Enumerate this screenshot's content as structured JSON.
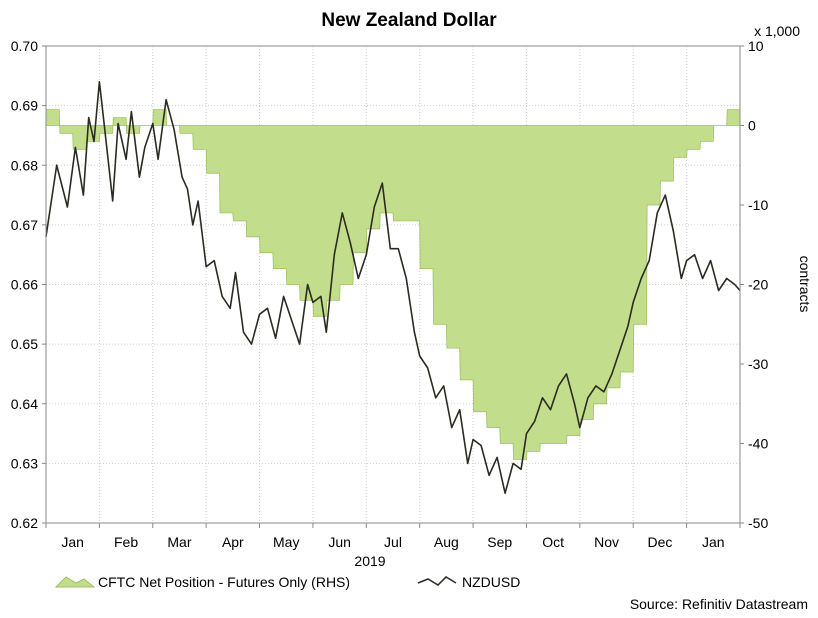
{
  "chart_data": {
    "type": "line",
    "title": "New Zealand Dollar",
    "xlabel": "2019",
    "ylabel_right": "contracts",
    "right_multiplier_label": "x 1,000",
    "source": "Source: Refinitiv Datastream",
    "x_ticks": [
      "Jan",
      "Feb",
      "Mar",
      "Apr",
      "May",
      "Jun",
      "Jul",
      "Aug",
      "Sep",
      "Oct",
      "Nov",
      "Dec",
      "Jan"
    ],
    "x_domain": [
      0,
      13
    ],
    "ylim_left": [
      0.62,
      0.7
    ],
    "yticks_left": [
      "0.62",
      "0.63",
      "0.64",
      "0.65",
      "0.66",
      "0.67",
      "0.68",
      "0.69",
      "0.70"
    ],
    "ylim_right": [
      -50,
      10
    ],
    "yticks_right": [
      "-50",
      "-40",
      "-30",
      "-20",
      "-10",
      "0",
      "10"
    ],
    "grid": true,
    "legend_position": "bottom-left",
    "colors": {
      "area_fill": "#c2de8c",
      "area_stroke": "#9fc25f",
      "line": "#2b2b22",
      "grid": "#cfcfcf",
      "frame": "#888888"
    },
    "series": [
      {
        "name": "CFTC Net Position - Futures Only (RHS)",
        "type": "area",
        "axis": "right",
        "x": [
          0.0,
          0.25,
          0.26,
          0.5,
          0.51,
          0.75,
          0.76,
          1.0,
          1.01,
          1.25,
          1.26,
          1.5,
          1.51,
          1.75,
          1.76,
          2.0,
          2.01,
          2.25,
          2.26,
          2.5,
          2.51,
          2.75,
          2.76,
          3.0,
          3.01,
          3.25,
          3.26,
          3.5,
          3.51,
          3.75,
          3.76,
          4.0,
          4.01,
          4.25,
          4.26,
          4.5,
          4.51,
          4.75,
          4.76,
          5.0,
          5.01,
          5.25,
          5.26,
          5.5,
          5.51,
          5.75,
          5.76,
          6.0,
          6.01,
          6.25,
          6.26,
          6.5,
          6.51,
          6.75,
          6.76,
          7.0,
          7.01,
          7.25,
          7.26,
          7.5,
          7.51,
          7.75,
          7.76,
          8.0,
          8.01,
          8.25,
          8.26,
          8.5,
          8.51,
          8.75,
          8.76,
          9.0,
          9.01,
          9.25,
          9.26,
          9.5,
          9.51,
          9.75,
          9.76,
          10.0,
          10.01,
          10.25,
          10.26,
          10.5,
          10.51,
          10.75,
          10.76,
          11.0,
          11.01,
          11.25,
          11.26,
          11.5,
          11.51,
          11.75,
          11.76,
          12.0,
          12.01,
          12.25,
          12.26,
          12.5,
          12.51,
          12.75,
          12.76,
          13.0
        ],
        "values": [
          2,
          2,
          -1,
          -1,
          -3,
          -3,
          -2,
          -2,
          -1,
          -1,
          1,
          1,
          -1,
          -1,
          0,
          0,
          2,
          2,
          0,
          0,
          -1,
          -1,
          -3,
          -3,
          -6,
          -6,
          -11,
          -11,
          -12,
          -12,
          -14,
          -14,
          -16,
          -16,
          -18,
          -18,
          -20,
          -20,
          -22,
          -22,
          -24,
          -24,
          -22,
          -22,
          -20,
          -20,
          -16,
          -16,
          -13,
          -13,
          -11,
          -11,
          -12,
          -12,
          -12,
          -12,
          -18,
          -18,
          -25,
          -25,
          -28,
          -28,
          -32,
          -32,
          -36,
          -36,
          -38,
          -38,
          -40,
          -40,
          -42,
          -42,
          -41,
          -41,
          -40,
          -40,
          -40,
          -40,
          -39,
          -39,
          -37,
          -37,
          -35,
          -35,
          -33,
          -33,
          -31,
          -31,
          -25,
          -25,
          -10,
          -10,
          -7,
          -7,
          -4,
          -4,
          -3,
          -3,
          -2,
          -2,
          0,
          0,
          2,
          2
        ]
      },
      {
        "name": "NZDUSD",
        "type": "line",
        "axis": "left",
        "x": [
          0.0,
          0.2,
          0.4,
          0.55,
          0.7,
          0.8,
          0.9,
          1.0,
          1.05,
          1.15,
          1.25,
          1.35,
          1.5,
          1.6,
          1.75,
          1.85,
          2.0,
          2.1,
          2.25,
          2.4,
          2.55,
          2.65,
          2.75,
          2.85,
          3.0,
          3.15,
          3.3,
          3.45,
          3.55,
          3.7,
          3.85,
          4.0,
          4.15,
          4.3,
          4.45,
          4.6,
          4.75,
          4.9,
          5.0,
          5.15,
          5.25,
          5.4,
          5.55,
          5.7,
          5.85,
          6.0,
          6.15,
          6.3,
          6.45,
          6.6,
          6.75,
          6.9,
          7.0,
          7.15,
          7.3,
          7.45,
          7.6,
          7.75,
          7.9,
          8.0,
          8.15,
          8.3,
          8.45,
          8.6,
          8.75,
          8.9,
          9.0,
          9.15,
          9.3,
          9.45,
          9.6,
          9.75,
          9.9,
          10.0,
          10.15,
          10.3,
          10.45,
          10.6,
          10.75,
          10.9,
          11.0,
          11.15,
          11.3,
          11.45,
          11.6,
          11.75,
          11.9,
          12.0,
          12.15,
          12.3,
          12.45,
          12.6,
          12.75,
          12.9,
          13.0
        ],
        "values": [
          0.668,
          0.68,
          0.673,
          0.683,
          0.675,
          0.688,
          0.684,
          0.694,
          0.69,
          0.682,
          0.674,
          0.687,
          0.681,
          0.689,
          0.678,
          0.683,
          0.687,
          0.681,
          0.691,
          0.686,
          0.678,
          0.676,
          0.67,
          0.674,
          0.663,
          0.664,
          0.658,
          0.656,
          0.662,
          0.652,
          0.65,
          0.655,
          0.656,
          0.651,
          0.658,
          0.654,
          0.65,
          0.66,
          0.657,
          0.658,
          0.652,
          0.665,
          0.672,
          0.667,
          0.661,
          0.665,
          0.673,
          0.677,
          0.666,
          0.666,
          0.661,
          0.652,
          0.648,
          0.646,
          0.641,
          0.643,
          0.636,
          0.639,
          0.63,
          0.634,
          0.633,
          0.628,
          0.631,
          0.625,
          0.63,
          0.629,
          0.635,
          0.637,
          0.641,
          0.639,
          0.643,
          0.645,
          0.64,
          0.636,
          0.641,
          0.643,
          0.642,
          0.645,
          0.649,
          0.653,
          0.657,
          0.661,
          0.664,
          0.672,
          0.675,
          0.669,
          0.661,
          0.664,
          0.665,
          0.661,
          0.664,
          0.659,
          0.661,
          0.66,
          0.659
        ]
      }
    ]
  }
}
